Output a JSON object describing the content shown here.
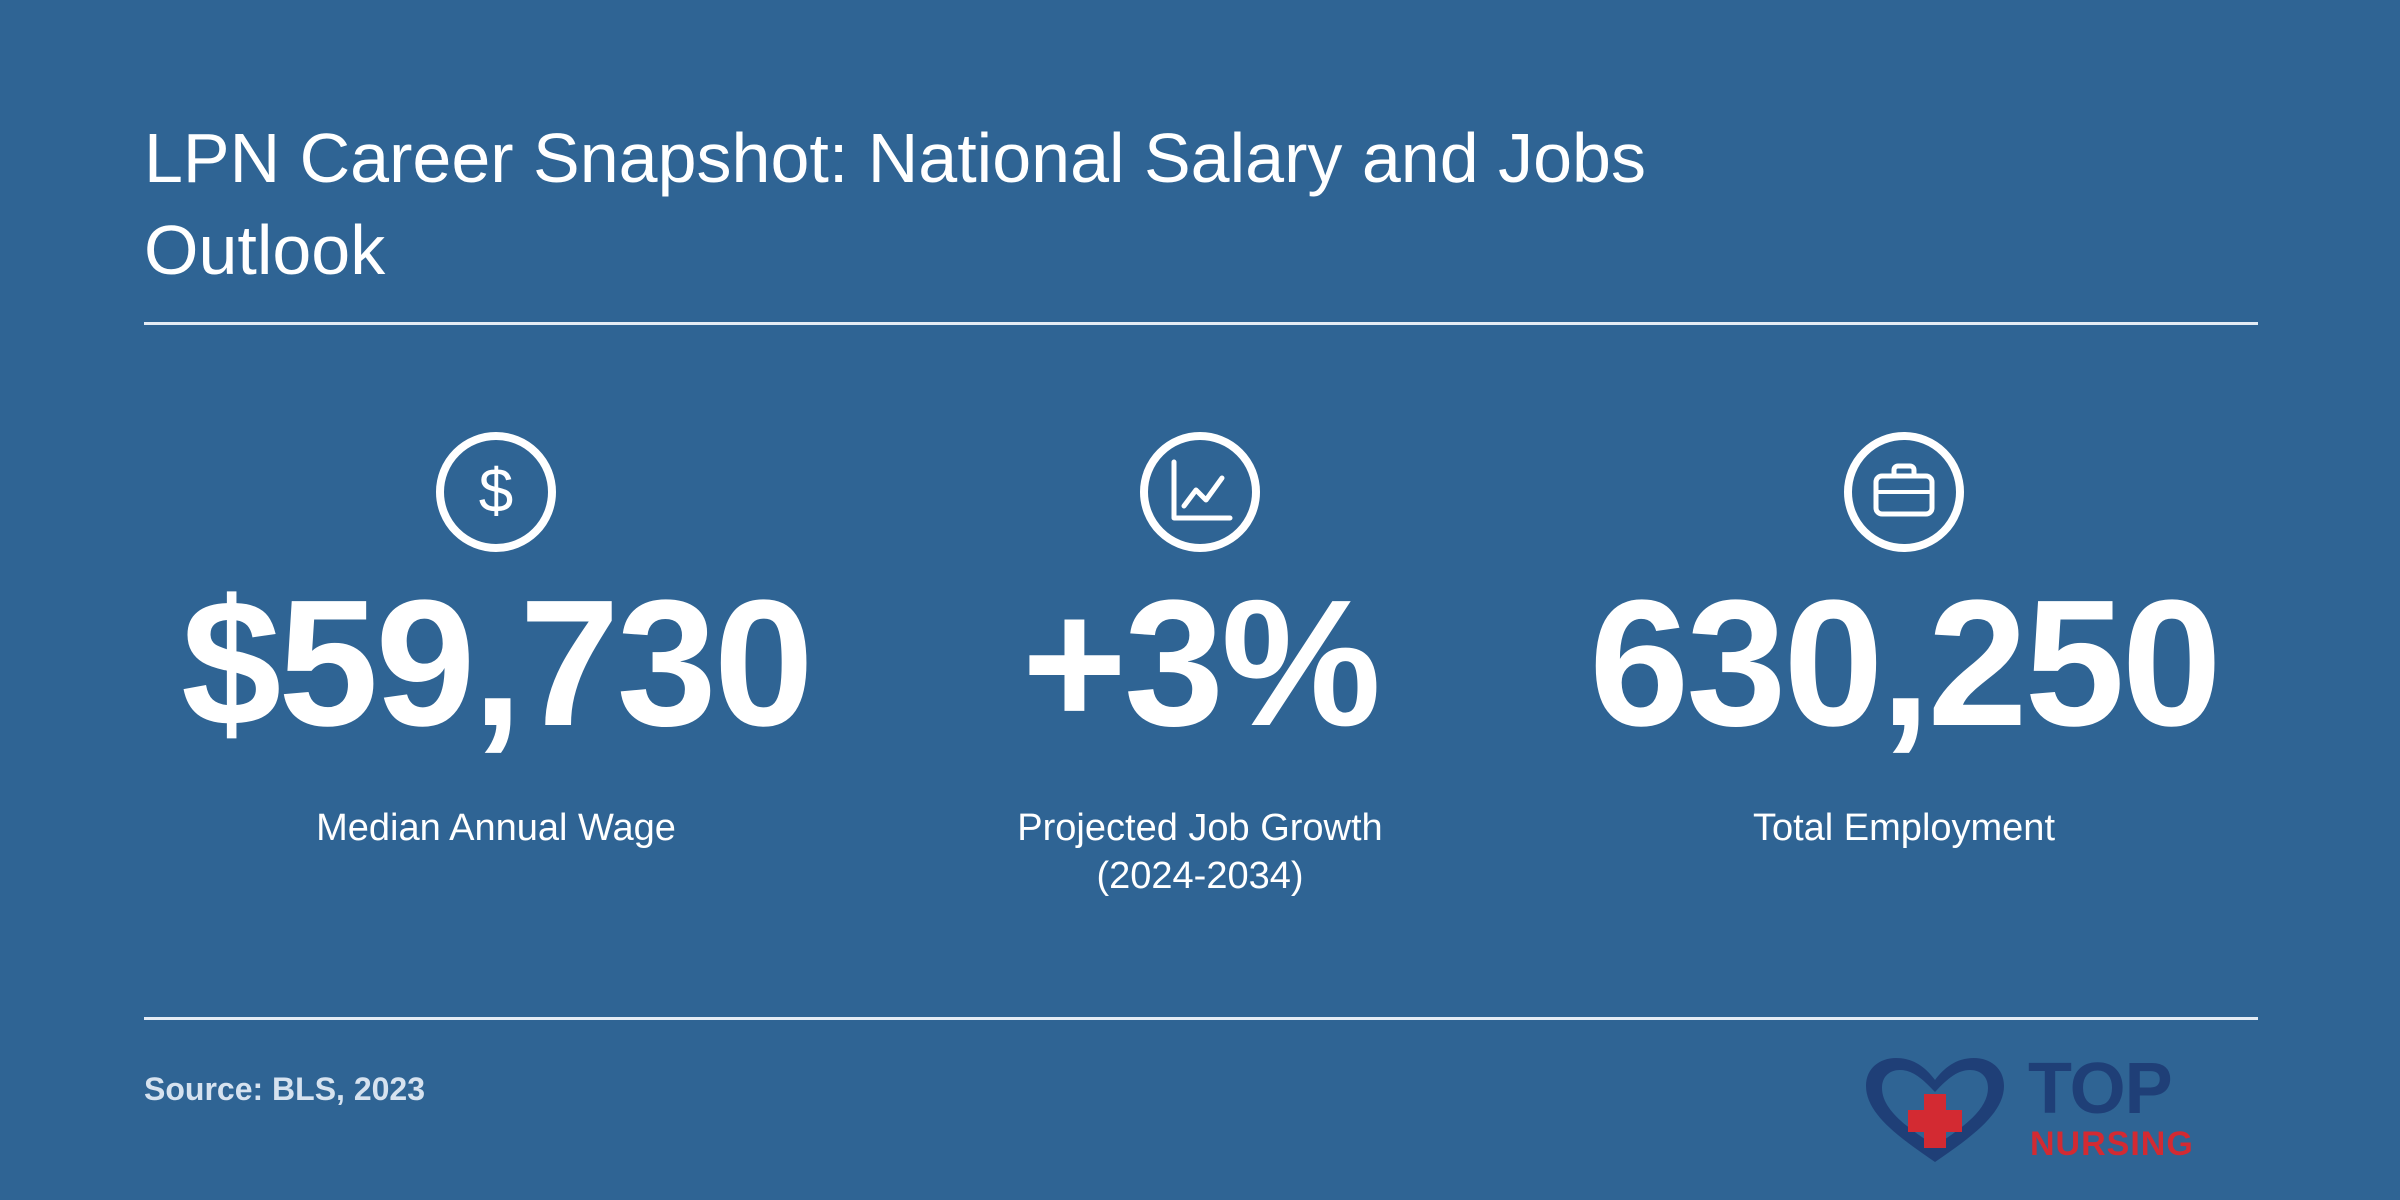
{
  "title": "LPN Career Snapshot: National Salary and Jobs Outlook",
  "stats": [
    {
      "icon": "dollar-icon",
      "value": "$59,730",
      "label": "Median Annual Wage"
    },
    {
      "icon": "line-chart-icon",
      "value": "+3%",
      "label_line1": "Projected Job Growth",
      "label_line2": "(2024-2034)"
    },
    {
      "icon": "briefcase-icon",
      "value": "630,250",
      "label": "Total Employment"
    }
  ],
  "source": "Source: BLS, 2023",
  "logo": {
    "line1": "TOP",
    "line2": "NURSING"
  },
  "colors": {
    "background": "#2f6494",
    "text": "#ffffff",
    "logo_navy": "#1f3f77",
    "logo_red": "#d32a32"
  }
}
